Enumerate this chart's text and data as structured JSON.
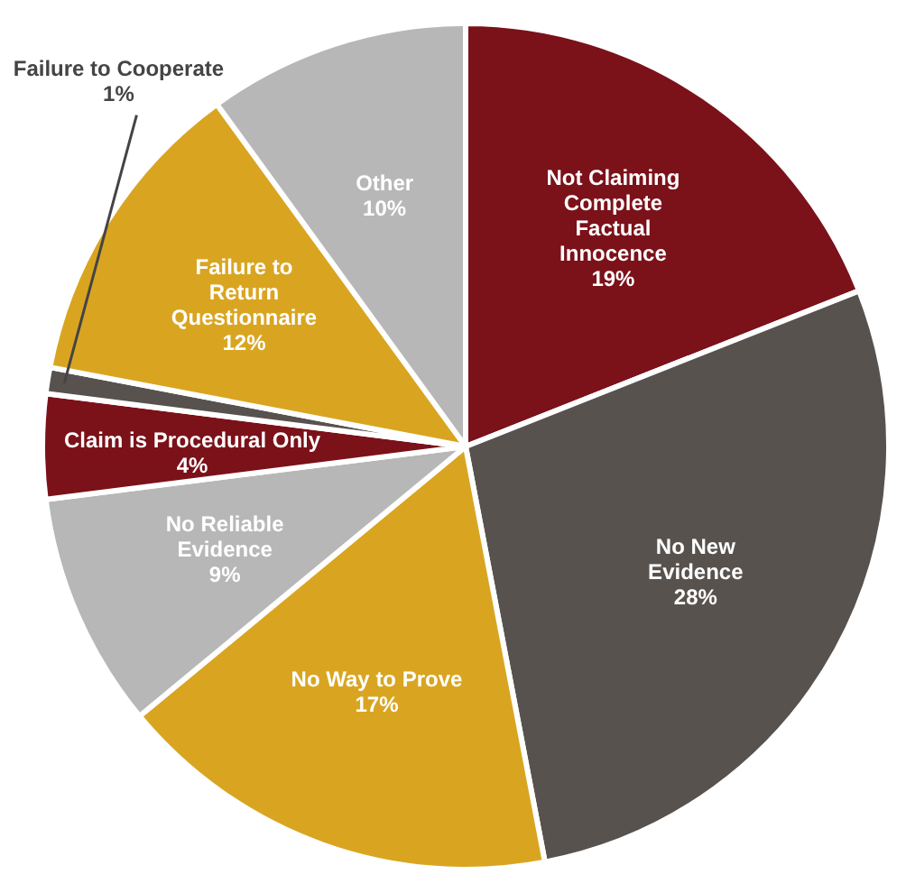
{
  "chart_data": {
    "type": "pie",
    "categories": [
      "Not Claiming Complete Factual Innocence",
      "No New Evidence",
      "No Way to Prove",
      "No Reliable Evidence",
      "Claim is Procedural Only",
      "Failure to Cooperate",
      "Failure to Return Questionnaire",
      "Other"
    ],
    "values": [
      19,
      28,
      17,
      9,
      4,
      1,
      12,
      10
    ],
    "colors": [
      "#7b1119",
      "#58524e",
      "#d9a521",
      "#b7b7b7",
      "#7b1119",
      "#58524e",
      "#d9a521",
      "#b7b7b7"
    ],
    "value_labels": [
      "19%",
      "28%",
      "17%",
      "9%",
      "4%",
      "1%",
      "12%",
      "10%"
    ],
    "legend": false
  }
}
